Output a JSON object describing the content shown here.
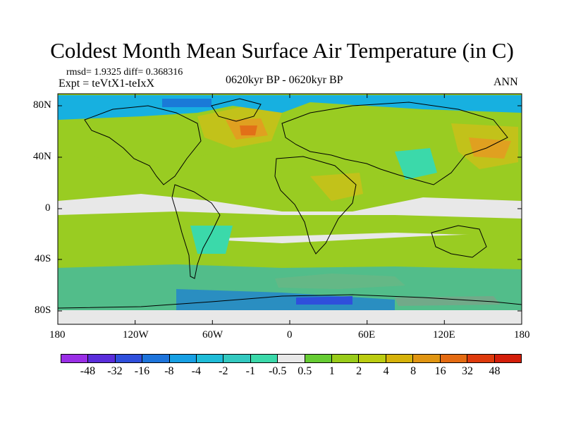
{
  "title": "Coldest Month Mean Surface Air Temperature (in C)",
  "rmsd_text": "rmsd= 1.9325 diff= 0.368316",
  "expt_text": "Expt = teVtX1-teIxX",
  "period_text": "0620kyr BP - 0620kyr BP",
  "season_text": "ANN",
  "y_ticks": [
    "80N",
    "40N",
    "0",
    "40S",
    "80S"
  ],
  "x_ticks": [
    "180",
    "120W",
    "60W",
    "0",
    "60E",
    "120E",
    "180"
  ],
  "colorbar": {
    "labels": [
      "-48",
      "-32",
      "-16",
      "-8",
      "-4",
      "-2",
      "-1",
      "-0.5",
      "0.5",
      "1",
      "2",
      "4",
      "8",
      "16",
      "32",
      "48"
    ],
    "colors": [
      "#9a2ee6",
      "#5a2ddb",
      "#2f4fdc",
      "#1d74db",
      "#17a0e4",
      "#1fbcd8",
      "#33c9c0",
      "#3bd9aa",
      "#e8e8e8",
      "#66cc33",
      "#99cc1a",
      "#bbcc11",
      "#d6b20a",
      "#e09512",
      "#e46b12",
      "#de3a0c",
      "#d41e0a"
    ]
  },
  "palette": {
    "neutral": "#e8e8e8",
    "warm_light": "#99cc22",
    "warm_mid": "#c2c21a",
    "warm_strong": "#e0a020",
    "warm_hot": "#e27018",
    "cool_light": "#3bd9aa",
    "cool_mid": "#17b0e0",
    "cool_strong": "#1a7ad8",
    "cool_deep": "#2f4fdc"
  }
}
